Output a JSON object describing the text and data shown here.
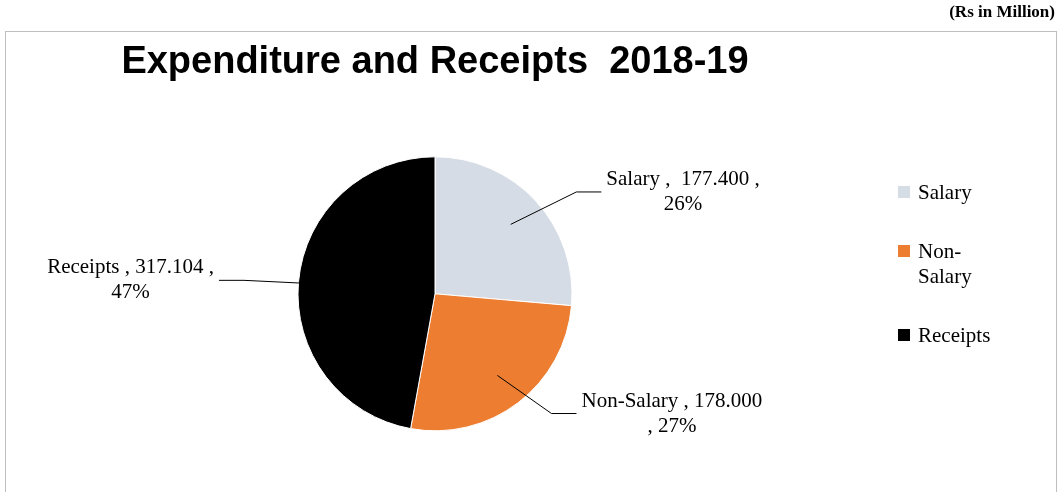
{
  "chart_data": {
    "type": "pie",
    "title": "Expenditure and Receipts  2018-19",
    "categories": [
      "Salary",
      "Non-Salary",
      "Receipts"
    ],
    "values": [
      177.4,
      178.0,
      317.104
    ],
    "colors": [
      "#d6dce5",
      "#ed7d31",
      "#000000"
    ],
    "value_labels": [
      "Salary ,  177.400 , 26%",
      "Non-Salary , 178.000 , 27%",
      "Receipts , 317.104 , 47%"
    ],
    "legend": "right",
    "annotations": [
      "(Rs in Million)"
    ]
  }
}
